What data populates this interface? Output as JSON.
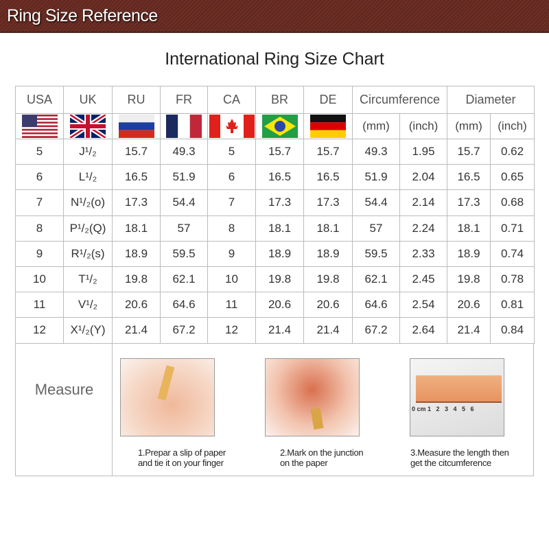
{
  "header": {
    "title": "Ring Size Reference"
  },
  "chart_title": "International Ring Size Chart",
  "columns": [
    "USA",
    "UK",
    "RU",
    "FR",
    "CA",
    "BR",
    "DE",
    "Circumference",
    "Diameter"
  ],
  "subheaders": [
    "(mm)",
    "(inch)",
    "(mm)",
    "(inch)"
  ],
  "flags": [
    "usa-flag",
    "uk-flag",
    "russia-flag",
    "france-flag",
    "canada-flag",
    "brazil-flag",
    "germany-flag"
  ],
  "rows": [
    [
      "5",
      "J¹/₂",
      "15.7",
      "49.3",
      "5",
      "15.7",
      "15.7",
      "49.3",
      "1.95",
      "15.7",
      "0.62"
    ],
    [
      "6",
      "L¹/₂",
      "16.5",
      "51.9",
      "6",
      "16.5",
      "16.5",
      "51.9",
      "2.04",
      "16.5",
      "0.65"
    ],
    [
      "7",
      "N¹/₂(o)",
      "17.3",
      "54.4",
      "7",
      "17.3",
      "17.3",
      "54.4",
      "2.14",
      "17.3",
      "0.68"
    ],
    [
      "8",
      "P¹/₂(Q)",
      "18.1",
      "57",
      "8",
      "18.1",
      "18.1",
      "57",
      "2.24",
      "18.1",
      "0.71"
    ],
    [
      "9",
      "R¹/₂(s)",
      "18.9",
      "59.5",
      "9",
      "18.9",
      "18.9",
      "59.5",
      "2.33",
      "18.9",
      "0.74"
    ],
    [
      "10",
      "T¹/₂",
      "19.8",
      "62.1",
      "10",
      "19.8",
      "19.8",
      "62.1",
      "2.45",
      "19.8",
      "0.78"
    ],
    [
      "11",
      "V¹/₂",
      "20.6",
      "64.6",
      "11",
      "20.6",
      "20.6",
      "64.6",
      "2.54",
      "20.6",
      "0.81"
    ],
    [
      "12",
      "X¹/₂(Y)",
      "21.4",
      "67.2",
      "12",
      "21.4",
      "21.4",
      "67.2",
      "2.64",
      "21.4",
      "0.84"
    ]
  ],
  "measure": {
    "label": "Measure",
    "steps": [
      {
        "line1": "1.Prepar a slip of paper",
        "line2": "and tie it on your finger"
      },
      {
        "line1": "2.Mark on the junction",
        "line2": "on the paper"
      },
      {
        "line1": "3.Measure the length then",
        "line2": "get the citcumference"
      }
    ],
    "ruler_labels": "0 cm 1   2   3   4   5   6"
  }
}
